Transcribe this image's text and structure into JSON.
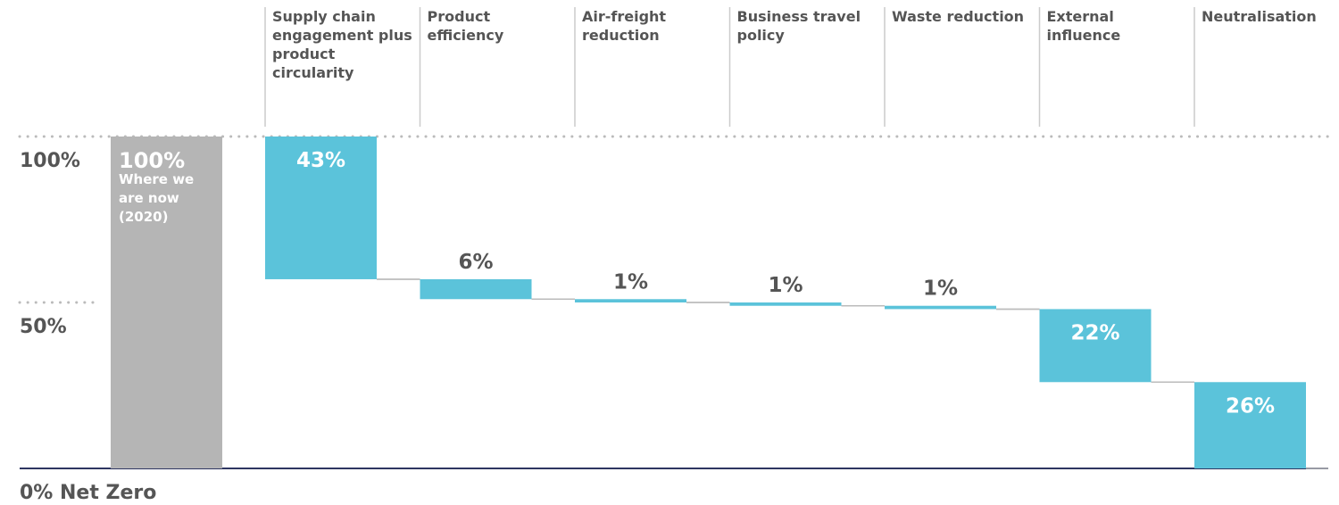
{
  "chart_data": {
    "type": "waterfall",
    "categories": [
      "Where we are now (2020)",
      "Supply chain engagement plus product circularity",
      "Product efficiency",
      "Air-freight reduction",
      "Business travel policy",
      "Waste reduction",
      "External influence",
      "Neutralisation"
    ],
    "values": [
      100,
      43,
      6,
      1,
      1,
      1,
      22,
      26
    ],
    "measures": [
      "total",
      "decrease",
      "decrease",
      "decrease",
      "decrease",
      "decrease",
      "decrease",
      "decrease"
    ],
    "value_labels": [
      "100%",
      "43%",
      "6%",
      "1%",
      "1%",
      "1%",
      "22%",
      "26%"
    ],
    "colors": {
      "total": "#b5b5b5",
      "decrease": "#5bc3da"
    },
    "ylim": [
      0,
      100
    ],
    "yticks": [
      {
        "value": 100,
        "label": "100%"
      },
      {
        "value": 50,
        "label": "50%"
      },
      {
        "value": 0,
        "label": "0% Net Zero"
      }
    ]
  }
}
